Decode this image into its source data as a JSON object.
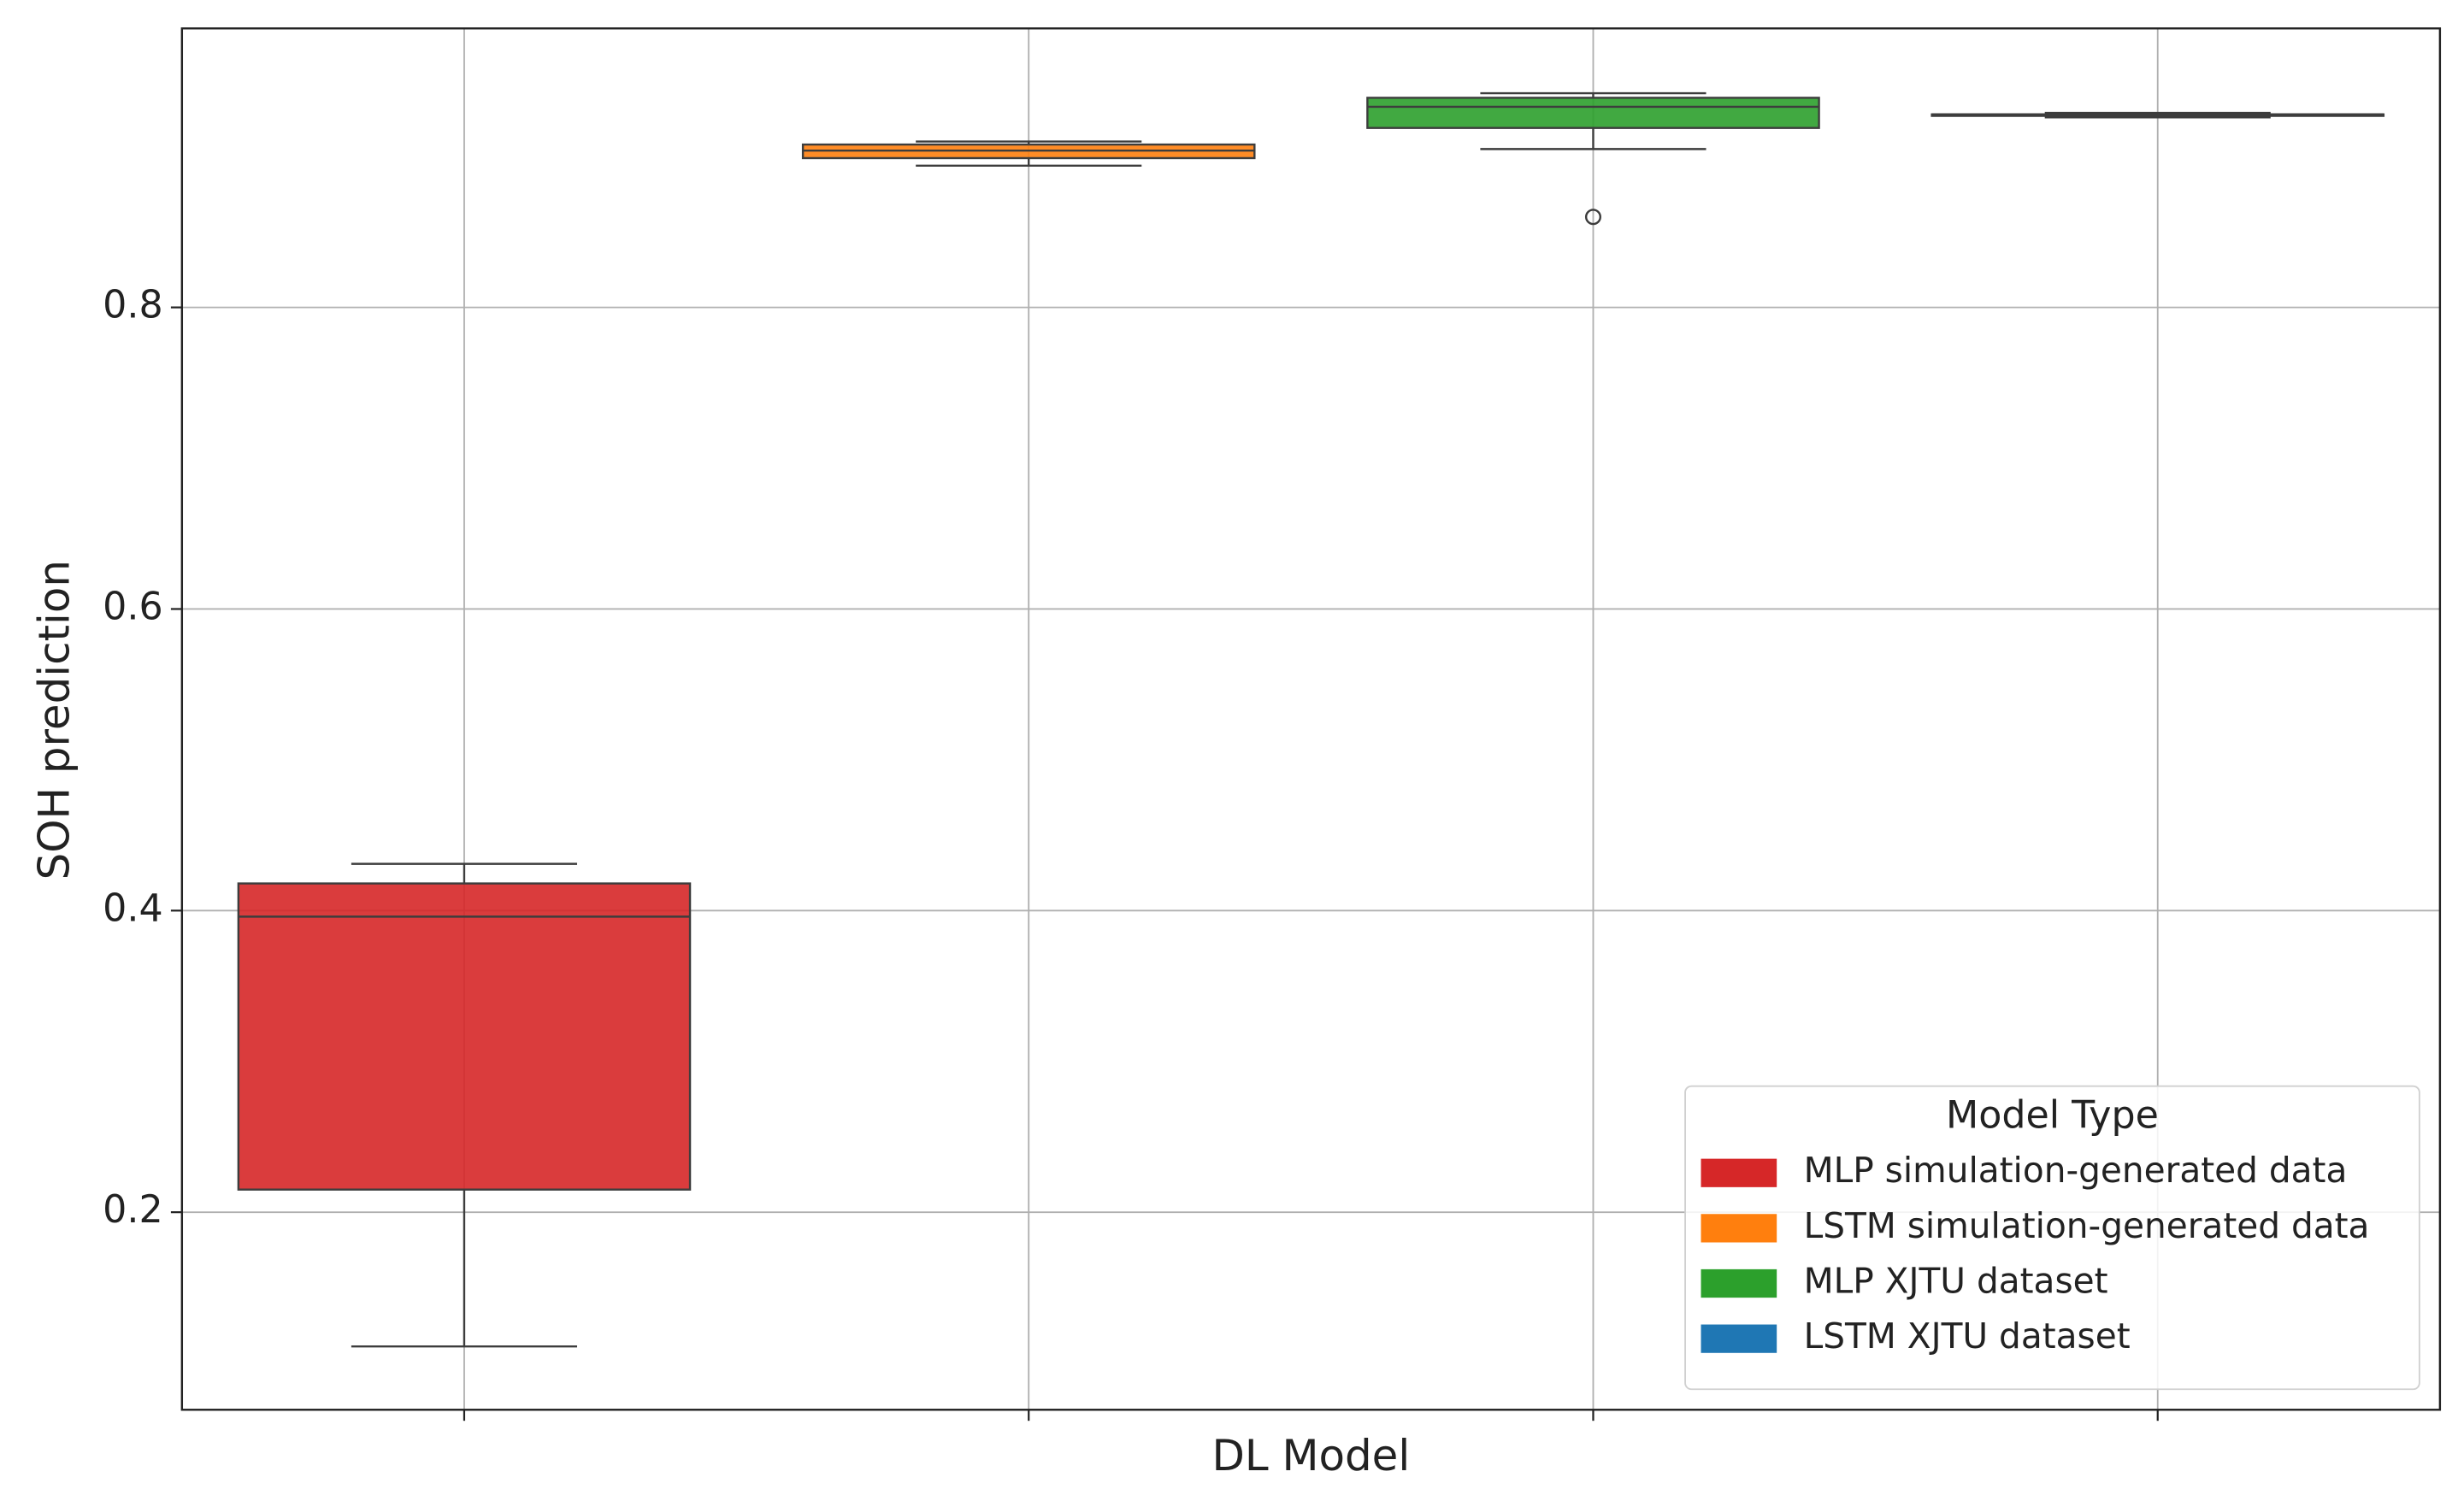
{
  "chart_data": {
    "type": "box",
    "xlabel": "DL Model",
    "ylabel": "SOH prediction",
    "categories": [
      null,
      null,
      null,
      null
    ],
    "ylim": [
      0.069,
      0.985
    ],
    "yticks": [
      0.2,
      0.4,
      0.6,
      0.8
    ],
    "grid": true,
    "legend_title": "Model Type",
    "legend_loc": "lower right",
    "series": [
      {
        "name": "MLP simulation-generated data",
        "color": "#d62728",
        "whislo": 0.111,
        "q1": 0.215,
        "median": 0.396,
        "q3": 0.418,
        "whishi": 0.431,
        "fliers": []
      },
      {
        "name": "LSTM simulation-generated data",
        "color": "#ff7f0e",
        "whislo": 0.894,
        "q1": 0.899,
        "median": 0.904,
        "q3": 0.908,
        "whishi": 0.91,
        "fliers": []
      },
      {
        "name": "MLP XJTU dataset",
        "color": "#2ca02c",
        "whislo": 0.905,
        "q1": 0.919,
        "median": 0.933,
        "q3": 0.939,
        "whishi": 0.942,
        "fliers": [
          0.86
        ]
      },
      {
        "name": "LSTM XJTU dataset",
        "color": "#1f77b4",
        "whislo": 0.926,
        "q1": 0.927,
        "median": 0.928,
        "q3": 0.928,
        "whishi": 0.929,
        "fliers": []
      }
    ]
  }
}
